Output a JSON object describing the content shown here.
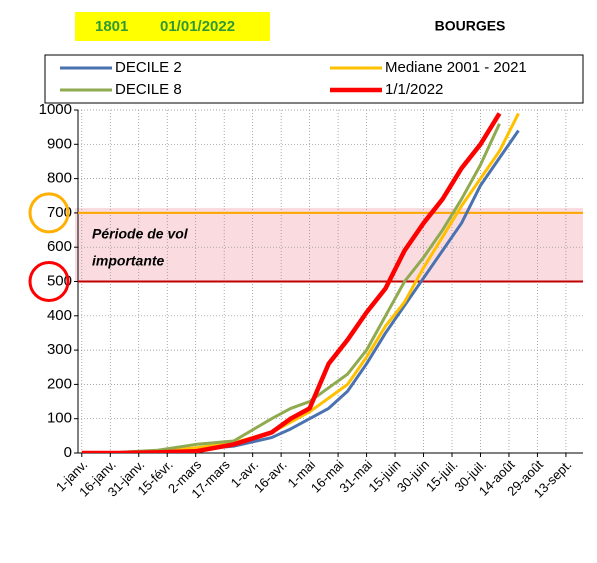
{
  "chart_data": {
    "type": "line",
    "header": [
      "1801",
      "01/01/2022"
    ],
    "title": "BOURGES",
    "annotation": [
      "Période de vol",
      "importante"
    ],
    "x": [
      0,
      20,
      40,
      60,
      80,
      100,
      110,
      120,
      130,
      140,
      150,
      160,
      170,
      180,
      190,
      200,
      210,
      220,
      230
    ],
    "series": [
      {
        "name": "DECILE 2",
        "color": "#4a72b0",
        "width": 3,
        "values": [
          0,
          0,
          3,
          10,
          20,
          45,
          70,
          100,
          130,
          180,
          260,
          350,
          430,
          510,
          590,
          670,
          780,
          860,
          940
        ]
      },
      {
        "name": "Mediane 2001 - 2021",
        "color": "#ffc000",
        "width": 3,
        "values": [
          0,
          0,
          5,
          15,
          30,
          60,
          90,
          120,
          160,
          200,
          280,
          370,
          440,
          540,
          630,
          720,
          800,
          880,
          990
        ]
      },
      {
        "name": "DECILE 8",
        "color": "#8faa4f",
        "width": 3,
        "values": [
          0,
          2,
          8,
          25,
          35,
          100,
          130,
          150,
          190,
          230,
          300,
          400,
          500,
          570,
          650,
          740,
          840,
          960,
          null
        ]
      },
      {
        "name": "1/1/2022",
        "color": "#ff0000",
        "width": 4.5,
        "values": [
          0,
          0,
          2,
          5,
          25,
          60,
          100,
          130,
          260,
          330,
          410,
          480,
          590,
          670,
          740,
          830,
          900,
          990,
          null
        ]
      }
    ],
    "hlines": [
      {
        "value": 700,
        "color": "#ffa500"
      },
      {
        "value": 500,
        "color": "#c00000"
      }
    ],
    "xlim": [
      -2,
      264
    ],
    "xticks": [
      {
        "value": 0,
        "label": "1-janv."
      },
      {
        "value": 15,
        "label": "16-janv."
      },
      {
        "value": 30,
        "label": "31-janv."
      },
      {
        "value": 45,
        "label": "15-févr."
      },
      {
        "value": 60,
        "label": "2-mars"
      },
      {
        "value": 75,
        "label": "17-mars"
      },
      {
        "value": 90,
        "label": "1-avr."
      },
      {
        "value": 105,
        "label": "16-avr."
      },
      {
        "value": 120,
        "label": "1-mai"
      },
      {
        "value": 135,
        "label": "16-mai"
      },
      {
        "value": 150,
        "label": "31-mai"
      },
      {
        "value": 165,
        "label": "15-juin"
      },
      {
        "value": 180,
        "label": "30-juin"
      },
      {
        "value": 195,
        "label": "15-juil."
      },
      {
        "value": 210,
        "label": "30-juil."
      },
      {
        "value": 225,
        "label": "14-août"
      },
      {
        "value": 240,
        "label": "29-août"
      },
      {
        "value": 255,
        "label": "13-sept."
      }
    ],
    "ylim": [
      0,
      1000
    ],
    "yticks": [
      0,
      100,
      200,
      300,
      400,
      500,
      600,
      700,
      800,
      900,
      1000
    ],
    "grid": true
  }
}
